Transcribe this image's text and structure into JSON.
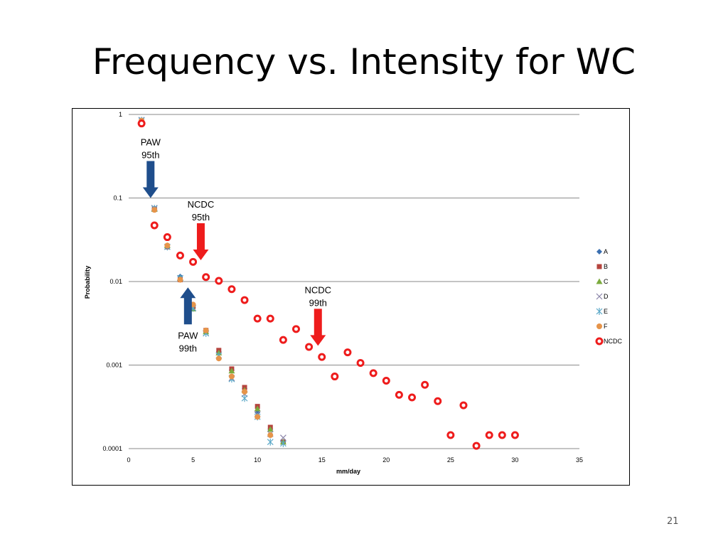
{
  "slide": {
    "title": "Frequency vs. Intensity for WC",
    "number": "21"
  },
  "colors": {
    "A": "#3a6fb0",
    "B": "#b5443e",
    "C": "#7bab3d",
    "D": "#8a84a8",
    "E": "#5aa8c8",
    "F": "#e6944a",
    "NCDC": "#ee1c1c",
    "blue_arrow": "#1f4e8c",
    "red_arrow": "#ee1c1c",
    "grid": "#8a8a8a"
  },
  "chart_data": {
    "type": "scatter",
    "xlabel": "mm/day",
    "ylabel": "Probability",
    "xlim": [
      0,
      35
    ],
    "ylim": [
      0.0001,
      1
    ],
    "y_scale": "log",
    "x_ticks": [
      "0",
      "5",
      "10",
      "15",
      "20",
      "25",
      "30",
      "35"
    ],
    "y_ticks": [
      "1",
      "0.1",
      "0.01",
      "0.001",
      "0.0001"
    ],
    "grid": "horizontal",
    "legend_position": "right",
    "series": [
      {
        "name": "A",
        "marker": "diamond",
        "x": [
          1,
          2,
          3,
          4,
          5,
          6,
          7,
          8,
          9,
          10,
          11,
          12
        ],
        "y": [
          0.85,
          0.075,
          0.026,
          0.0115,
          0.0049,
          0.0025,
          0.00145,
          0.00087,
          0.00052,
          0.00027,
          0.00017,
          0.00012
        ]
      },
      {
        "name": "B",
        "marker": "square",
        "x": [
          1,
          2,
          3,
          4,
          5,
          6,
          7,
          8,
          9,
          10,
          11,
          12
        ],
        "y": [
          0.85,
          0.074,
          0.026,
          0.0105,
          0.005,
          0.0026,
          0.0015,
          0.0009,
          0.00054,
          0.00032,
          0.00018,
          0.00012
        ]
      },
      {
        "name": "C",
        "marker": "triangle",
        "x": [
          1,
          2,
          3,
          4,
          5,
          6,
          7,
          8,
          9,
          10,
          11,
          12
        ],
        "y": [
          0.85,
          0.073,
          0.027,
          0.011,
          0.0047,
          0.0025,
          0.0014,
          0.00085,
          0.0005,
          0.0003,
          0.00017,
          0.00012
        ]
      },
      {
        "name": "D",
        "marker": "x",
        "x": [
          1,
          2,
          3,
          4,
          5,
          6,
          7,
          8,
          9,
          10,
          11,
          12
        ],
        "y": [
          0.86,
          0.076,
          0.026,
          0.011,
          0.0048,
          0.0024,
          0.0013,
          0.0007,
          0.00045,
          0.00026,
          0.00015,
          0.000135
        ]
      },
      {
        "name": "E",
        "marker": "star",
        "x": [
          1,
          2,
          3,
          4,
          5,
          6,
          7,
          8,
          9,
          10,
          11,
          12
        ],
        "y": [
          0.85,
          0.075,
          0.026,
          0.011,
          0.0048,
          0.0024,
          0.0013,
          0.00068,
          0.0004,
          0.00024,
          0.00012,
          0.000115
        ]
      },
      {
        "name": "F",
        "marker": "circle",
        "x": [
          1,
          2,
          3,
          4,
          5,
          6,
          7,
          8,
          9,
          10,
          11
        ],
        "y": [
          0.84,
          0.072,
          0.027,
          0.0105,
          0.0053,
          0.0026,
          0.0012,
          0.00073,
          0.00048,
          0.00024,
          0.000145
        ]
      },
      {
        "name": "NCDC",
        "marker": "ring",
        "x": [
          1,
          2,
          3,
          4,
          5,
          6,
          7,
          8,
          9,
          10,
          11,
          12,
          13,
          14,
          15,
          16,
          17,
          18,
          19,
          20,
          21,
          22,
          23,
          24,
          25,
          26,
          27,
          28,
          29,
          30
        ],
        "y": [
          0.78,
          0.047,
          0.034,
          0.0205,
          0.0172,
          0.0113,
          0.0102,
          0.0081,
          0.006,
          0.0036,
          0.0036,
          0.002,
          0.0027,
          0.00165,
          0.00125,
          0.00073,
          0.00142,
          0.00106,
          0.0008,
          0.00065,
          0.00044,
          0.00041,
          0.00058,
          0.00037,
          0.000145,
          0.00033,
          0.000108,
          0.000145,
          0.000145,
          0.000145
        ]
      }
    ],
    "annotations": [
      {
        "id": "paw95",
        "lines": [
          "PAW",
          "95th"
        ],
        "color": "blue",
        "direction": "down",
        "x": 1.7,
        "tip_y": 0.1
      },
      {
        "id": "ncdc95",
        "lines": [
          "NCDC",
          "95th"
        ],
        "color": "red",
        "direction": "down",
        "x": 5.6,
        "tip_y": 0.018
      },
      {
        "id": "paw99",
        "lines": [
          "PAW",
          "99th"
        ],
        "color": "blue",
        "direction": "up",
        "x": 4.6,
        "tip_y": 0.0085
      },
      {
        "id": "ncdc99",
        "lines": [
          "NCDC",
          "99th"
        ],
        "color": "red",
        "direction": "down",
        "x": 14.7,
        "tip_y": 0.0017
      }
    ]
  }
}
